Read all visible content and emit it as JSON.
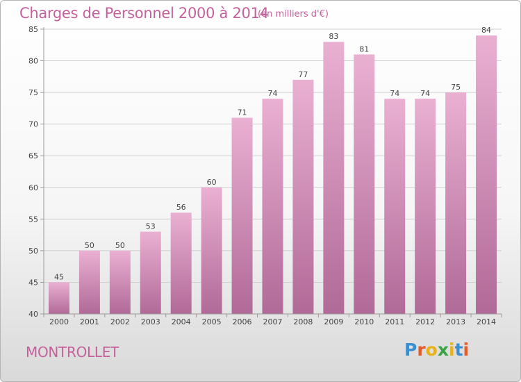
{
  "header": {
    "title": "Charges de Personnel 2000 à 2014",
    "subtitle": "(en milliers d'€)"
  },
  "footer": {
    "commune": "MONTROLLET",
    "logo_text": "Proxiti",
    "logo_colors": [
      "#3a8fd0",
      "#e35b2a",
      "#e8b21a",
      "#3aa345",
      "#e8b21a",
      "#3a8fd0",
      "#e35b2a"
    ]
  },
  "colors": {
    "bar_top": "#eab0d2",
    "bar_bottom": "#b06a97",
    "text": "#c4619b",
    "axis": "#9a9a9a",
    "grid": "#cfcfcf"
  },
  "chart_data": {
    "type": "bar",
    "title": "Charges de Personnel 2000 à 2014",
    "subtitle": "(en milliers d'€)",
    "categories": [
      "2000",
      "2001",
      "2002",
      "2003",
      "2004",
      "2005",
      "2006",
      "2007",
      "2008",
      "2009",
      "2010",
      "2011",
      "2012",
      "2013",
      "2014"
    ],
    "values": [
      45,
      50,
      50,
      53,
      56,
      60,
      71,
      74,
      77,
      83,
      81,
      74,
      74,
      75,
      84
    ],
    "ylim": [
      40,
      85
    ],
    "yticks": [
      40,
      45,
      50,
      55,
      60,
      65,
      70,
      75,
      80,
      85
    ],
    "grid": true,
    "data_labels": true
  }
}
